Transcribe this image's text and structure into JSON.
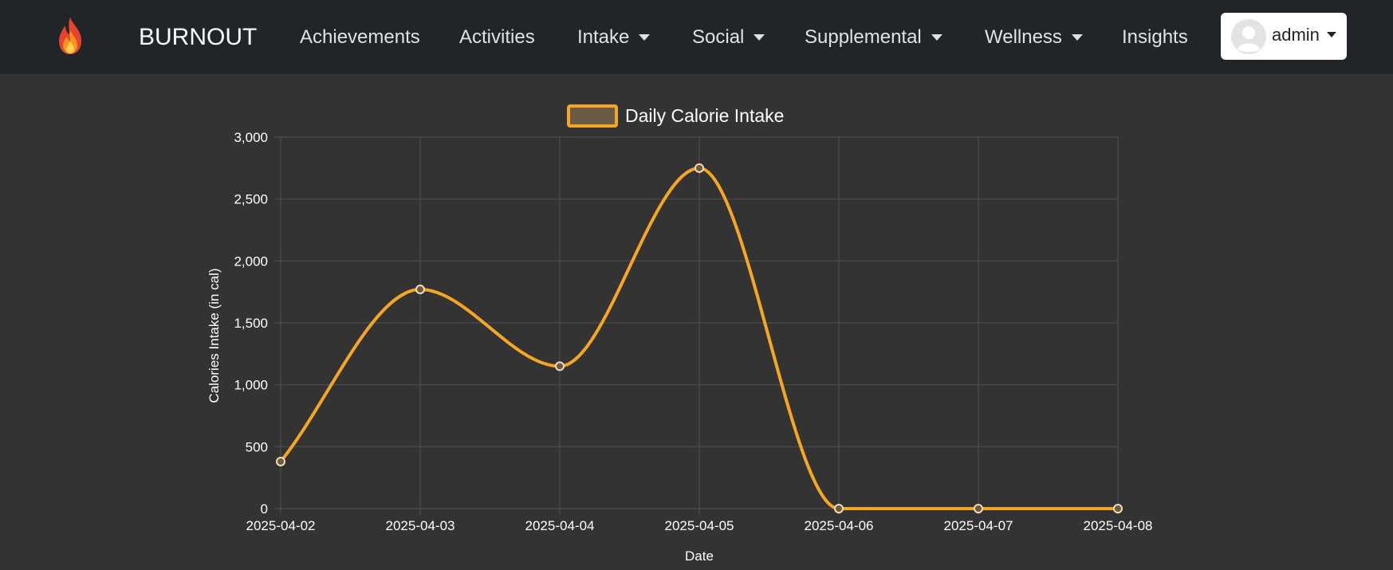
{
  "navbar": {
    "brand": "BURNOUT",
    "brand_icon": "flame-icon",
    "items": [
      {
        "label": "Achievements",
        "dropdown": false
      },
      {
        "label": "Activities",
        "dropdown": false
      },
      {
        "label": "Intake",
        "dropdown": true
      },
      {
        "label": "Social",
        "dropdown": true
      },
      {
        "label": "Supplemental",
        "dropdown": true
      },
      {
        "label": "Wellness",
        "dropdown": true
      },
      {
        "label": "Insights",
        "dropdown": false
      }
    ],
    "user": {
      "name": "admin",
      "avatar_icon": "user-avatar-icon"
    }
  },
  "colors": {
    "navbar_bg": "#212529",
    "page_bg": "#333333",
    "series_line": "#F5A623",
    "series_fill": "#6B5A44"
  },
  "chart_data": {
    "type": "line",
    "x": [
      "2025-04-02",
      "2025-04-03",
      "2025-04-04",
      "2025-04-05",
      "2025-04-06",
      "2025-04-07",
      "2025-04-08"
    ],
    "series": [
      {
        "name": "Daily Calorie Intake",
        "values": [
          380,
          1770,
          1150,
          2750,
          0,
          0,
          0
        ]
      }
    ],
    "xlabel": "Date",
    "ylabel": "Calories Intake (in cal)",
    "ylim": [
      0,
      3000
    ],
    "yticks": [
      "0",
      "500",
      "1,000",
      "1,500",
      "2,000",
      "2,500",
      "3,000"
    ],
    "grid": true,
    "legend": "top-center",
    "smooth": true
  }
}
